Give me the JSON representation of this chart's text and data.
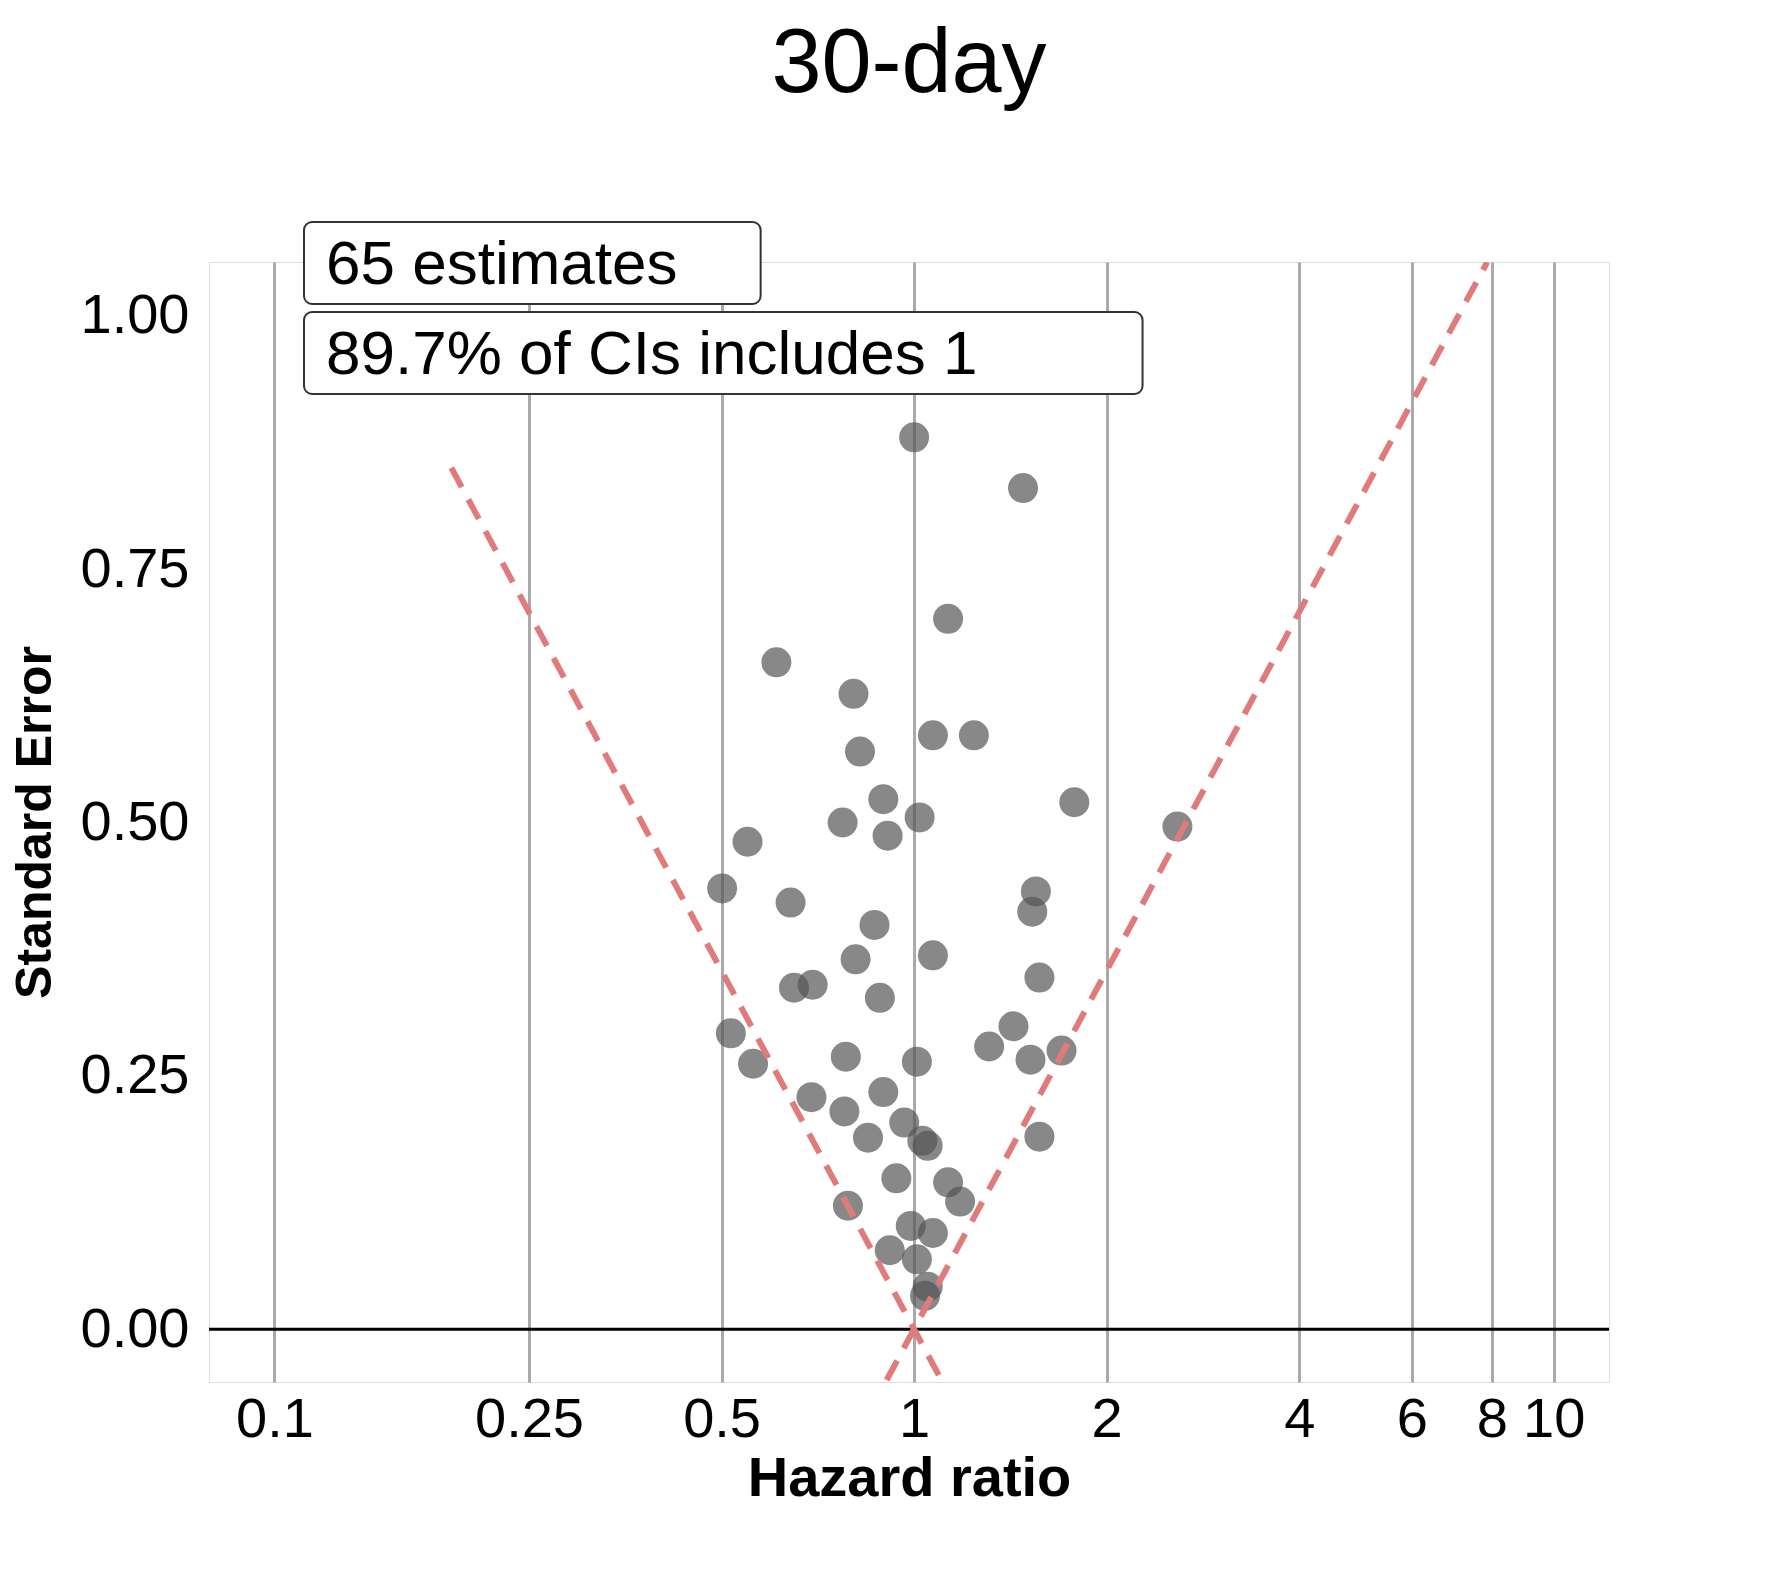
{
  "chart_data": {
    "type": "scatter",
    "title": "30-day",
    "xlabel": "Hazard ratio",
    "ylabel": "Standard Error",
    "log": "x",
    "grid": "x",
    "marker": "circle",
    "xlim": [
      0.079,
      12.2
    ],
    "xticks": [
      0.1,
      0.25,
      0.5,
      1,
      2,
      4,
      6,
      8,
      10
    ],
    "ylim": [
      -0.052,
      1.053
    ],
    "yticks": [
      {
        "value": 0,
        "label": "0.00"
      },
      {
        "value": 0.25,
        "label": "0.25"
      },
      {
        "value": 0.5,
        "label": "0.50"
      },
      {
        "value": 0.75,
        "label": "0.75"
      },
      {
        "value": 1,
        "label": "1.00"
      }
    ],
    "ref_lines": [
      {
        "axis": "y",
        "value": 0,
        "color": "#000000"
      }
    ],
    "annotations": [
      "65 estimates",
      "89.7% of CIs includes 1"
    ],
    "series": [
      {
        "color": "#555555",
        "x": [
          1.0,
          1.48,
          1.13,
          0.609,
          0.804,
          1.07,
          1.24,
          0.823,
          1.78,
          2.58,
          0.895,
          1.02,
          0.773,
          0.909,
          0.549,
          0.501,
          1.55,
          0.641,
          1.53,
          0.867,
          1.07,
          0.81,
          1.57,
          0.649,
          0.694,
          0.884,
          1.43,
          0.517,
          1.31,
          1.7,
          0.782,
          1.52,
          1.01,
          0.56,
          0.895,
          0.691,
          0.778,
          0.965,
          0.847,
          1.57,
          1.03,
          1.05,
          0.938,
          1.13,
          1.18,
          0.788,
          0.988,
          1.07,
          0.916,
          1.01,
          1.05,
          1.04
        ],
        "values": [
          0.88,
          0.83,
          0.701,
          0.658,
          0.627,
          0.586,
          0.586,
          0.57,
          0.52,
          0.496,
          0.523,
          0.505,
          0.5,
          0.487,
          0.481,
          0.435,
          0.432,
          0.421,
          0.412,
          0.399,
          0.369,
          0.365,
          0.347,
          0.337,
          0.34,
          0.327,
          0.299,
          0.292,
          0.279,
          0.275,
          0.269,
          0.266,
          0.264,
          0.262,
          0.234,
          0.229,
          0.215,
          0.204,
          0.189,
          0.19,
          0.186,
          0.181,
          0.149,
          0.145,
          0.126,
          0.122,
          0.102,
          0.095,
          0.078,
          0.069,
          0.042,
          0.033
        ]
      },
      {
        "type": "line",
        "marker": "none",
        "color": "#e07b7b",
        "line_style": "dashed",
        "x": [
          1.103,
          0.189
        ],
        "values": [
          -0.05,
          0.85
        ]
      },
      {
        "type": "line",
        "marker": "none",
        "color": "#e07b7b",
        "line_style": "dashed",
        "x": [
          0.906,
          7.87
        ],
        "values": [
          -0.05,
          1.053
        ]
      }
    ]
  }
}
